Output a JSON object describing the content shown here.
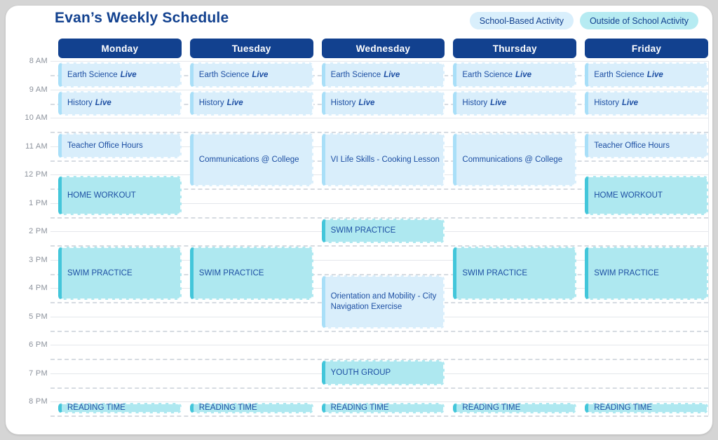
{
  "page": {
    "title": "Evan’s Weekly Schedule"
  },
  "legend": [
    {
      "label": "School-Based Activity",
      "type": "school"
    },
    {
      "label": "Outside of School Activity",
      "type": "outside"
    }
  ],
  "colors": {
    "navy": "#12418F",
    "event_text": "#1D4FA3",
    "school_bg": "#D9EEFB",
    "school_accent": "#A9DFF8",
    "school_chip": "#D9EFFC",
    "outside_bg": "#AEE8F0",
    "outside_accent": "#43C6DA",
    "outside_chip": "#B6EBF2",
    "line_solid": "#E4E7EB",
    "line_dash": "#C9CFD8",
    "time_gray": "#8C929C"
  },
  "calendar": {
    "time_labels": [
      "8 AM",
      "9 AM",
      "10 AM",
      "11 AM",
      "12 PM",
      "1 PM",
      "2 PM",
      "3 PM",
      "4 PM",
      "5 PM",
      "6 PM",
      "7 PM",
      "8 PM"
    ],
    "days": [
      {
        "name": "Monday",
        "events": [
          {
            "label": "Earth Science",
            "suffix": "Live",
            "start": 8,
            "end": 9,
            "type": "school"
          },
          {
            "label": "History",
            "suffix": "Live",
            "start": 9,
            "end": 10,
            "type": "school"
          },
          {
            "label": "Teacher Office Hours",
            "start": 10.5,
            "end": 11.5,
            "type": "school"
          },
          {
            "label": "HOME WORKOUT",
            "start": 12,
            "end": 13.5,
            "type": "outside"
          },
          {
            "label": "SWIM PRACTICE",
            "start": 14.5,
            "end": 16.5,
            "type": "outside"
          },
          {
            "label": "READING TIME",
            "start": 20,
            "end": 20.5,
            "type": "outside"
          }
        ]
      },
      {
        "name": "Tuesday",
        "events": [
          {
            "label": "Earth Science",
            "suffix": "Live",
            "start": 8,
            "end": 9,
            "type": "school"
          },
          {
            "label": "History",
            "suffix": "Live",
            "start": 9,
            "end": 10,
            "type": "school"
          },
          {
            "label": "Communications @ College",
            "start": 10.5,
            "end": 12.5,
            "type": "school"
          },
          {
            "label": "SWIM PRACTICE",
            "start": 14.5,
            "end": 16.5,
            "type": "outside"
          },
          {
            "label": "READING TIME",
            "start": 20,
            "end": 20.5,
            "type": "outside"
          }
        ]
      },
      {
        "name": "Wednesday",
        "events": [
          {
            "label": "Earth Science",
            "suffix": "Live",
            "start": 8,
            "end": 9,
            "type": "school"
          },
          {
            "label": "History",
            "suffix": "Live",
            "start": 9,
            "end": 10,
            "type": "school"
          },
          {
            "label": "VI Life Skills - Cooking Lesson",
            "start": 10.5,
            "end": 12.5,
            "type": "school"
          },
          {
            "label": "SWIM PRACTICE",
            "start": 13.5,
            "end": 14.5,
            "type": "outside"
          },
          {
            "label": "Orientation and Mobility - City Navigation Exercise",
            "start": 15.5,
            "end": 17.5,
            "type": "school"
          },
          {
            "label": "YOUTH GROUP",
            "start": 18.5,
            "end": 19.5,
            "type": "outside"
          },
          {
            "label": "READING TIME",
            "start": 20,
            "end": 20.5,
            "type": "outside"
          }
        ]
      },
      {
        "name": "Thursday",
        "events": [
          {
            "label": "Earth Science",
            "suffix": "Live",
            "start": 8,
            "end": 9,
            "type": "school"
          },
          {
            "label": "History",
            "suffix": "Live",
            "start": 9,
            "end": 10,
            "type": "school"
          },
          {
            "label": "Communications @ College",
            "start": 10.5,
            "end": 12.5,
            "type": "school"
          },
          {
            "label": "SWIM PRACTICE",
            "start": 14.5,
            "end": 16.5,
            "type": "outside"
          },
          {
            "label": "READING TIME",
            "start": 20,
            "end": 20.5,
            "type": "outside"
          }
        ]
      },
      {
        "name": "Friday",
        "events": [
          {
            "label": "Earth Science",
            "suffix": "Live",
            "start": 8,
            "end": 9,
            "type": "school"
          },
          {
            "label": "History",
            "suffix": "Live",
            "start": 9,
            "end": 10,
            "type": "school"
          },
          {
            "label": "Teacher Office Hours",
            "start": 10.5,
            "end": 11.5,
            "type": "school"
          },
          {
            "label": "HOME WORKOUT",
            "start": 12,
            "end": 13.5,
            "type": "outside"
          },
          {
            "label": "SWIM PRACTICE",
            "start": 14.5,
            "end": 16.5,
            "type": "outside"
          },
          {
            "label": "READING TIME",
            "start": 20,
            "end": 20.5,
            "type": "outside"
          }
        ]
      }
    ]
  }
}
